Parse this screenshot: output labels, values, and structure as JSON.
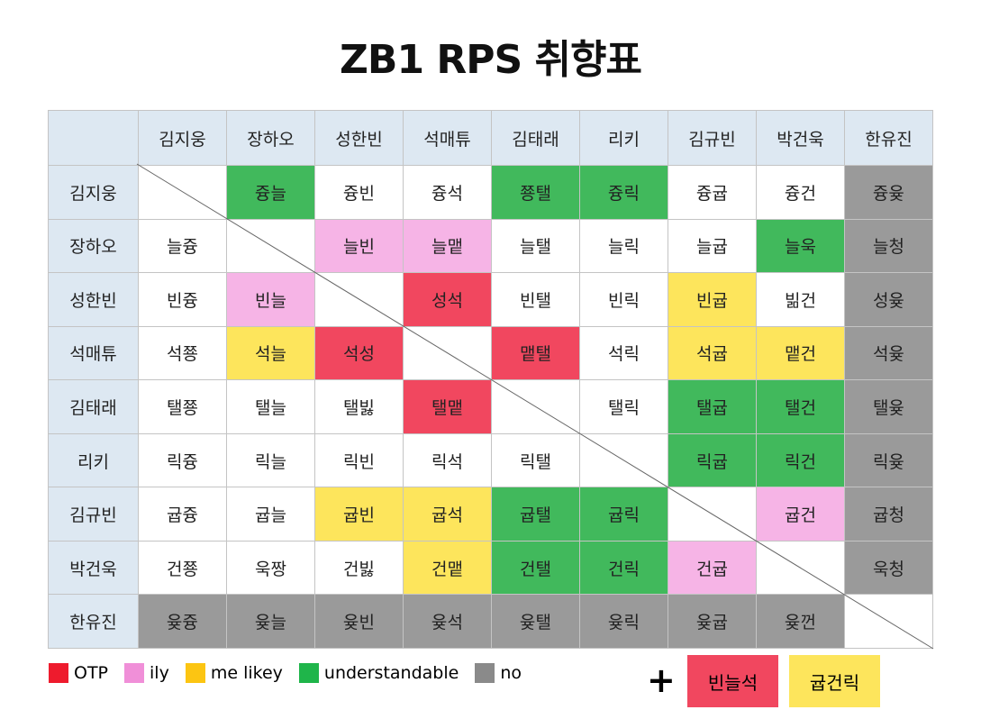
{
  "title": "ZB1 RPS 취향표",
  "table": {
    "columns": [
      "김지웅",
      "장하오",
      "성한빈",
      "석매튜",
      "김태래",
      "리키",
      "김규빈",
      "박건욱",
      "한유진"
    ],
    "rows": [
      {
        "label": "김지웅",
        "cells": [
          null,
          {
            "text": "즁늘",
            "color": "#41b95c"
          },
          {
            "text": "즁빈"
          },
          {
            "text": "즁석"
          },
          {
            "text": "쭁탤",
            "color": "#41b95c"
          },
          {
            "text": "즁릭",
            "color": "#41b95c"
          },
          {
            "text": "즁귭"
          },
          {
            "text": "즁건"
          },
          {
            "text": "즁윶",
            "color": "#9a9a9a"
          }
        ]
      },
      {
        "label": "장하오",
        "cells": [
          {
            "text": "늘즁"
          },
          null,
          {
            "text": "늘빈",
            "color": "#f6b4e6"
          },
          {
            "text": "늘맽",
            "color": "#f6b4e6"
          },
          {
            "text": "늘탤"
          },
          {
            "text": "늘릭"
          },
          {
            "text": "늘귭"
          },
          {
            "text": "늘욱",
            "color": "#41b95c"
          },
          {
            "text": "늘청",
            "color": "#9a9a9a"
          }
        ]
      },
      {
        "label": "성한빈",
        "cells": [
          {
            "text": "빈즁"
          },
          {
            "text": "빈늘",
            "color": "#f6b4e6"
          },
          null,
          {
            "text": "성석",
            "color": "#f1475f"
          },
          {
            "text": "빈탤"
          },
          {
            "text": "빈릭"
          },
          {
            "text": "빈귭",
            "color": "#fde55c"
          },
          {
            "text": "빎건"
          },
          {
            "text": "성윶",
            "color": "#9a9a9a"
          }
        ]
      },
      {
        "label": "석매튜",
        "cells": [
          {
            "text": "석쭁"
          },
          {
            "text": "석늘",
            "color": "#fde55c"
          },
          {
            "text": "석성",
            "color": "#f1475f"
          },
          null,
          {
            "text": "맽탤",
            "color": "#f1475f"
          },
          {
            "text": "석릭"
          },
          {
            "text": "석귭",
            "color": "#fde55c"
          },
          {
            "text": "맽건",
            "color": "#fde55c"
          },
          {
            "text": "석윶",
            "color": "#9a9a9a"
          }
        ]
      },
      {
        "label": "김태래",
        "cells": [
          {
            "text": "탤쭁"
          },
          {
            "text": "탤늘"
          },
          {
            "text": "탤빓"
          },
          {
            "text": "탤맽",
            "color": "#f1475f"
          },
          null,
          {
            "text": "탤릭"
          },
          {
            "text": "탤귭",
            "color": "#41b95c"
          },
          {
            "text": "탤건",
            "color": "#41b95c"
          },
          {
            "text": "탤윶",
            "color": "#9a9a9a"
          }
        ]
      },
      {
        "label": "리키",
        "cells": [
          {
            "text": "릭즁"
          },
          {
            "text": "릭늘"
          },
          {
            "text": "릭빈"
          },
          {
            "text": "릭석"
          },
          {
            "text": "릭탤"
          },
          null,
          {
            "text": "릭귭",
            "color": "#41b95c"
          },
          {
            "text": "릭건",
            "color": "#41b95c"
          },
          {
            "text": "릭윶",
            "color": "#9a9a9a"
          }
        ]
      },
      {
        "label": "김규빈",
        "cells": [
          {
            "text": "귭즁"
          },
          {
            "text": "귭늘"
          },
          {
            "text": "귭빈",
            "color": "#fde55c"
          },
          {
            "text": "귭석",
            "color": "#fde55c"
          },
          {
            "text": "귭탤",
            "color": "#41b95c"
          },
          {
            "text": "귭릭",
            "color": "#41b95c"
          },
          null,
          {
            "text": "귭건",
            "color": "#f6b4e6"
          },
          {
            "text": "귭청",
            "color": "#9a9a9a"
          }
        ]
      },
      {
        "label": "박건욱",
        "cells": [
          {
            "text": "건쭁"
          },
          {
            "text": "욱짱"
          },
          {
            "text": "건빓"
          },
          {
            "text": "건맽",
            "color": "#fde55c"
          },
          {
            "text": "건탤",
            "color": "#41b95c"
          },
          {
            "text": "건릭",
            "color": "#41b95c"
          },
          {
            "text": "건귭",
            "color": "#f6b4e6"
          },
          null,
          {
            "text": "욱청",
            "color": "#9a9a9a"
          }
        ]
      },
      {
        "label": "한유진",
        "cells": [
          {
            "text": "윶즁",
            "color": "#9a9a9a"
          },
          {
            "text": "윶늘",
            "color": "#9a9a9a"
          },
          {
            "text": "윶빈",
            "color": "#9a9a9a"
          },
          {
            "text": "윶석",
            "color": "#9a9a9a"
          },
          {
            "text": "윶탤",
            "color": "#9a9a9a"
          },
          {
            "text": "윶릭",
            "color": "#9a9a9a"
          },
          {
            "text": "윶귭",
            "color": "#9a9a9a"
          },
          {
            "text": "윶껀",
            "color": "#9a9a9a"
          },
          null
        ]
      }
    ]
  },
  "legend": [
    {
      "label": "OTP",
      "color": "#ee1b2d"
    },
    {
      "label": "ily",
      "color": "#f08fd8"
    },
    {
      "label": "me likey",
      "color": "#fcc512"
    },
    {
      "label": "understandable",
      "color": "#1fb54a"
    },
    {
      "label": "no",
      "color": "#8a8a8a"
    }
  ],
  "extra": {
    "plus": "+",
    "items": [
      {
        "label": "빈늘석",
        "color": "#f1475f"
      },
      {
        "label": "귭건릭",
        "color": "#fde55c"
      }
    ]
  }
}
